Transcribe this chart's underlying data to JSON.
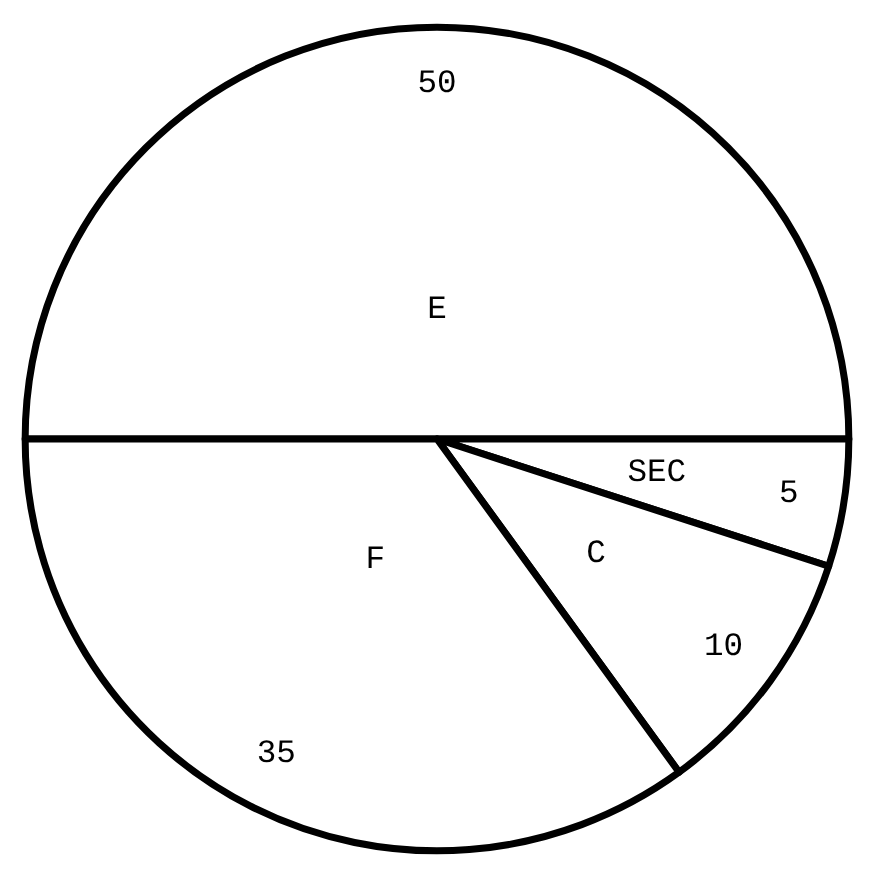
{
  "chart_data": {
    "type": "pie",
    "categories": [
      "E",
      "SEC",
      "C",
      "F"
    ],
    "values": [
      50,
      5,
      10,
      35
    ],
    "colors": [
      "#ffffff",
      "#ffffff",
      "#ffffff",
      "#ffffff"
    ],
    "data_labels": true
  }
}
